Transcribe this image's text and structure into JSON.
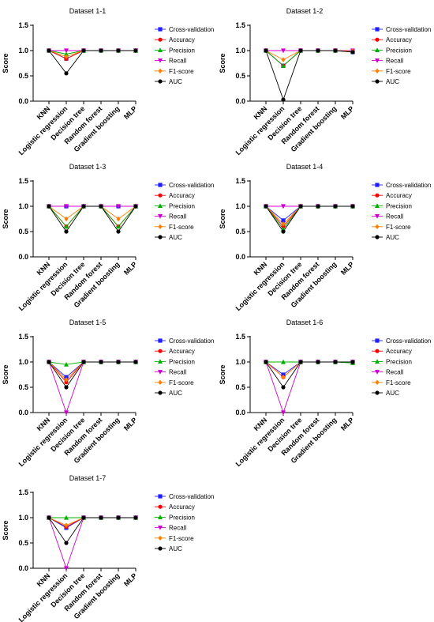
{
  "chart_data": [
    {
      "type": "line",
      "title": "Dataset 1-1",
      "ylabel": "Score",
      "ylim": [
        0,
        1.5
      ],
      "yticks": [
        "0.0",
        "0.5",
        "1.0",
        "1.5"
      ],
      "categories": [
        "KNN",
        "Logistic regression",
        "Decision tree",
        "Random forest",
        "Gradient boosting",
        "MLP"
      ],
      "series": [
        {
          "name": "Cross-validation",
          "values": [
            1.0,
            0.84,
            1.0,
            1.0,
            1.0,
            1.0
          ]
        },
        {
          "name": "Accuracy",
          "values": [
            1.0,
            0.84,
            1.0,
            1.0,
            1.0,
            1.0
          ]
        },
        {
          "name": "Precision",
          "values": [
            1.0,
            0.93,
            1.0,
            1.0,
            1.0,
            1.0
          ]
        },
        {
          "name": "Recall",
          "values": [
            1.0,
            1.0,
            1.0,
            1.0,
            1.0,
            1.0
          ]
        },
        {
          "name": "F1-score",
          "values": [
            1.0,
            0.88,
            1.0,
            1.0,
            1.0,
            1.0
          ]
        },
        {
          "name": "AUC",
          "values": [
            1.0,
            0.55,
            1.0,
            1.0,
            1.0,
            1.0
          ]
        }
      ]
    },
    {
      "type": "line",
      "title": "Dataset 1-2",
      "ylabel": "Score",
      "ylim": [
        0,
        1.5
      ],
      "yticks": [
        "0.0",
        "0.5",
        "1.0",
        "1.5"
      ],
      "categories": [
        "KNN",
        "Logistic regression",
        "Decision tree",
        "Random forest",
        "Gradient boosting",
        "MLP"
      ],
      "series": [
        {
          "name": "Cross-validation",
          "values": [
            1.0,
            0.7,
            1.0,
            1.0,
            1.0,
            0.97
          ]
        },
        {
          "name": "Accuracy",
          "values": [
            1.0,
            0.7,
            1.0,
            1.0,
            1.0,
            0.98
          ]
        },
        {
          "name": "Precision",
          "values": [
            1.0,
            0.7,
            1.0,
            1.0,
            1.0,
            0.98
          ]
        },
        {
          "name": "Recall",
          "values": [
            1.0,
            1.0,
            1.0,
            1.0,
            1.0,
            1.0
          ]
        },
        {
          "name": "F1-score",
          "values": [
            1.0,
            0.82,
            1.0,
            1.0,
            1.0,
            0.99
          ]
        },
        {
          "name": "AUC",
          "values": [
            1.0,
            0.03,
            1.0,
            1.0,
            1.0,
            0.97
          ]
        }
      ]
    },
    {
      "type": "line",
      "title": "Dataset 1-3",
      "ylabel": "Score",
      "ylim": [
        0,
        1.5
      ],
      "yticks": [
        "0.0",
        "0.5",
        "1.0",
        "1.5"
      ],
      "categories": [
        "KNN",
        "Logistic regression",
        "Decision tree",
        "Random forest",
        "Gradient boosting",
        "MLP"
      ],
      "series": [
        {
          "name": "Cross-validation",
          "values": [
            1.0,
            1.0,
            1.0,
            1.0,
            1.0,
            1.0
          ]
        },
        {
          "name": "Accuracy",
          "values": [
            1.0,
            0.6,
            1.0,
            1.0,
            0.6,
            1.0
          ]
        },
        {
          "name": "Precision",
          "values": [
            1.0,
            0.6,
            1.0,
            1.0,
            0.6,
            1.0
          ]
        },
        {
          "name": "Recall",
          "values": [
            1.0,
            1.0,
            1.0,
            1.0,
            1.0,
            1.0
          ]
        },
        {
          "name": "F1-score",
          "values": [
            1.0,
            0.75,
            1.0,
            1.0,
            0.75,
            1.0
          ]
        },
        {
          "name": "AUC",
          "values": [
            1.0,
            0.5,
            1.0,
            1.0,
            0.5,
            1.0
          ]
        }
      ]
    },
    {
      "type": "line",
      "title": "Dataset 1-4",
      "ylabel": "Score",
      "ylim": [
        0,
        1.5
      ],
      "yticks": [
        "0.0",
        "0.5",
        "1.0",
        "1.5"
      ],
      "categories": [
        "KNN",
        "Logistic regression",
        "Decision tree",
        "Random forest",
        "Gradient boosting",
        "MLP"
      ],
      "series": [
        {
          "name": "Cross-validation",
          "values": [
            1.0,
            0.72,
            1.0,
            1.0,
            1.0,
            1.0
          ]
        },
        {
          "name": "Accuracy",
          "values": [
            1.0,
            0.6,
            1.0,
            1.0,
            1.0,
            1.0
          ]
        },
        {
          "name": "Precision",
          "values": [
            1.0,
            0.55,
            1.0,
            1.0,
            1.0,
            1.0
          ]
        },
        {
          "name": "Recall",
          "values": [
            1.0,
            1.0,
            1.0,
            1.0,
            1.0,
            1.0
          ]
        },
        {
          "name": "F1-score",
          "values": [
            1.0,
            0.65,
            1.0,
            1.0,
            1.0,
            1.0
          ]
        },
        {
          "name": "AUC",
          "values": [
            1.0,
            0.5,
            1.0,
            1.0,
            1.0,
            1.0
          ]
        }
      ]
    },
    {
      "type": "line",
      "title": "Dataset 1-5",
      "ylabel": "Score",
      "ylim": [
        0,
        1.5
      ],
      "yticks": [
        "0.0",
        "0.5",
        "1.0",
        "1.5"
      ],
      "categories": [
        "KNN",
        "Logistic regression",
        "Decision tree",
        "Random forest",
        "Gradient boosting",
        "MLP"
      ],
      "series": [
        {
          "name": "Cross-validation",
          "values": [
            1.0,
            0.7,
            1.0,
            1.0,
            1.0,
            1.0
          ]
        },
        {
          "name": "Accuracy",
          "values": [
            1.0,
            0.6,
            1.0,
            1.0,
            1.0,
            1.0
          ]
        },
        {
          "name": "Precision",
          "values": [
            1.0,
            0.95,
            1.0,
            1.0,
            1.0,
            1.0
          ]
        },
        {
          "name": "Recall",
          "values": [
            1.0,
            0.0,
            1.0,
            1.0,
            1.0,
            1.0
          ]
        },
        {
          "name": "F1-score",
          "values": [
            1.0,
            0.65,
            1.0,
            1.0,
            1.0,
            1.0
          ]
        },
        {
          "name": "AUC",
          "values": [
            1.0,
            0.5,
            1.0,
            1.0,
            1.0,
            1.0
          ]
        }
      ]
    },
    {
      "type": "line",
      "title": "Dataset 1-6",
      "ylabel": "Score",
      "ylim": [
        0,
        1.5
      ],
      "yticks": [
        "0.0",
        "0.5",
        "1.0",
        "1.5"
      ],
      "categories": [
        "KNN",
        "Logistic regression",
        "Decision tree",
        "Random forest",
        "Gradient boosting",
        "MLP"
      ],
      "series": [
        {
          "name": "Cross-validation",
          "values": [
            1.0,
            0.75,
            1.0,
            1.0,
            1.0,
            1.0
          ]
        },
        {
          "name": "Accuracy",
          "values": [
            1.0,
            0.7,
            1.0,
            1.0,
            1.0,
            1.0
          ]
        },
        {
          "name": "Precision",
          "values": [
            1.0,
            1.0,
            1.0,
            1.0,
            1.0,
            0.98
          ]
        },
        {
          "name": "Recall",
          "values": [
            1.0,
            0.0,
            1.0,
            1.0,
            1.0,
            1.0
          ]
        },
        {
          "name": "F1-score",
          "values": [
            1.0,
            0.7,
            1.0,
            1.0,
            1.0,
            1.0
          ]
        },
        {
          "name": "AUC",
          "values": [
            1.0,
            0.5,
            1.0,
            1.0,
            1.0,
            1.0
          ]
        }
      ]
    },
    {
      "type": "line",
      "title": "Dataset 1-7",
      "ylabel": "Score",
      "ylim": [
        0,
        1.5
      ],
      "yticks": [
        "0.0",
        "0.5",
        "1.0",
        "1.5"
      ],
      "categories": [
        "KNN",
        "Logistic regression",
        "Decision tree",
        "Random forest",
        "Gradient boosting",
        "MLP"
      ],
      "series": [
        {
          "name": "Cross-validation",
          "values": [
            1.0,
            0.8,
            1.0,
            1.0,
            1.0,
            1.0
          ]
        },
        {
          "name": "Accuracy",
          "values": [
            1.0,
            0.82,
            1.0,
            1.0,
            1.0,
            1.0
          ]
        },
        {
          "name": "Precision",
          "values": [
            1.0,
            1.0,
            1.0,
            1.0,
            1.0,
            1.0
          ]
        },
        {
          "name": "Recall",
          "values": [
            1.0,
            0.0,
            1.0,
            1.0,
            1.0,
            1.0
          ]
        },
        {
          "name": "F1-score",
          "values": [
            1.0,
            0.85,
            1.0,
            1.0,
            1.0,
            1.0
          ]
        },
        {
          "name": "AUC",
          "values": [
            1.0,
            0.5,
            1.0,
            1.0,
            1.0,
            1.0
          ]
        }
      ]
    }
  ],
  "series_style": [
    {
      "name": "Cross-validation",
      "color": "#1f1fff",
      "marker": "square"
    },
    {
      "name": "Accuracy",
      "color": "#ff0000",
      "marker": "circle"
    },
    {
      "name": "Precision",
      "color": "#00b000",
      "marker": "triangle-up"
    },
    {
      "name": "Recall",
      "color": "#d000d0",
      "marker": "triangle-down"
    },
    {
      "name": "F1-score",
      "color": "#ff7f00",
      "marker": "diamond"
    },
    {
      "name": "AUC",
      "color": "#000000",
      "marker": "circle"
    }
  ]
}
